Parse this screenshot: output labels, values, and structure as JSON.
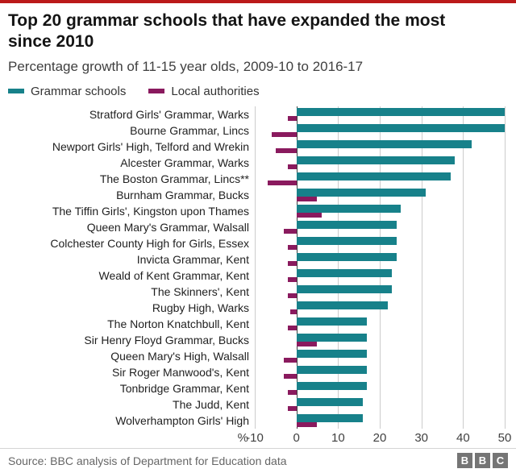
{
  "header": {
    "title": "Top 20 grammar schools that have expanded the most since 2010",
    "subtitle": "Percentage growth of 11-15 year olds, 2009-10 to 2016-17"
  },
  "legend": [
    {
      "label": "Grammar schools",
      "color": "#17818a"
    },
    {
      "label": "Local authorities",
      "color": "#8a1a5e"
    }
  ],
  "chart_data": {
    "type": "bar",
    "orientation": "horizontal",
    "title": "Top 20 grammar schools that have expanded the most since 2010",
    "subtitle": "Percentage growth of 11-15 year olds, 2009-10 to 2016-17",
    "xlabel": "%",
    "xlim": [
      -10,
      50
    ],
    "xticks": [
      -10,
      0,
      10,
      20,
      30,
      40,
      50
    ],
    "grid": true,
    "legend_position": "top",
    "categories": [
      "Stratford Girls' Grammar, Warks",
      "Bourne Grammar, Lincs",
      "Newport Girls' High, Telford and Wrekin",
      "Alcester Grammar, Warks",
      "The Boston Grammar, Lincs**",
      "Burnham Grammar, Bucks",
      "The Tiffin Girls', Kingston upon Thames",
      "Queen Mary's Grammar, Walsall",
      "Colchester County High for Girls, Essex",
      "Invicta Grammar, Kent",
      "Weald of Kent Grammar, Kent",
      "The Skinners', Kent",
      "Rugby High, Warks",
      "The Norton Knatchbull, Kent",
      "Sir Henry Floyd Grammar, Bucks",
      "Queen Mary's High, Walsall",
      "Sir Roger Manwood's, Kent",
      "Tonbridge Grammar, Kent",
      "The Judd, Kent",
      "Wolverhampton Girls' High"
    ],
    "series": [
      {
        "name": "Grammar schools",
        "color": "#17818a",
        "values": [
          50,
          50,
          42,
          38,
          37,
          31,
          25,
          24,
          24,
          24,
          23,
          23,
          22,
          17,
          17,
          17,
          17,
          17,
          16,
          16
        ]
      },
      {
        "name": "Local authorities",
        "color": "#8a1a5e",
        "values": [
          -2,
          -6,
          -5,
          -2,
          -7,
          5,
          6,
          -3,
          -2,
          -2,
          -2,
          -2,
          -1.5,
          -2,
          5,
          -3,
          -3,
          -2,
          -2,
          5
        ]
      }
    ]
  },
  "footer": {
    "source": "Source: BBC analysis of Department for Education data",
    "logo_letters": [
      "B",
      "B",
      "C"
    ]
  }
}
